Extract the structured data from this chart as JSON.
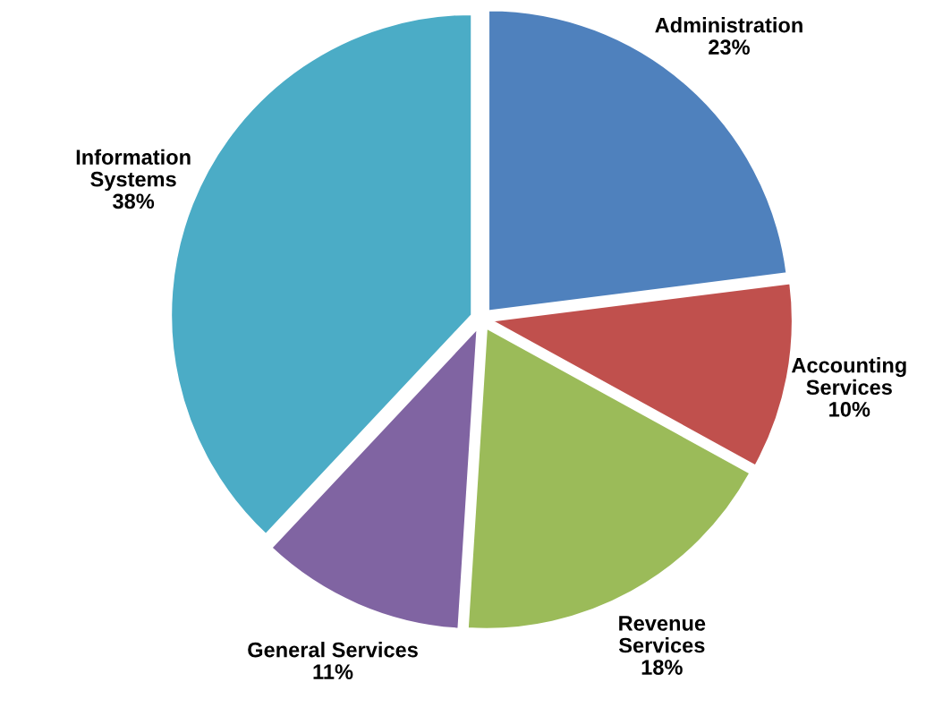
{
  "chart_data": {
    "type": "pie",
    "categories": [
      "Administration",
      "Accounting\nServices",
      "Revenue\nServices",
      "General Services",
      "Information\nSystems"
    ],
    "values": [
      23,
      10,
      18,
      11,
      38
    ],
    "value_labels": [
      "23%",
      "10%",
      "18%",
      "11%",
      "38%"
    ],
    "colors": [
      "#4f81bd",
      "#c0504d",
      "#9bbb59",
      "#8064a2",
      "#4bacc6"
    ],
    "legend": false
  }
}
